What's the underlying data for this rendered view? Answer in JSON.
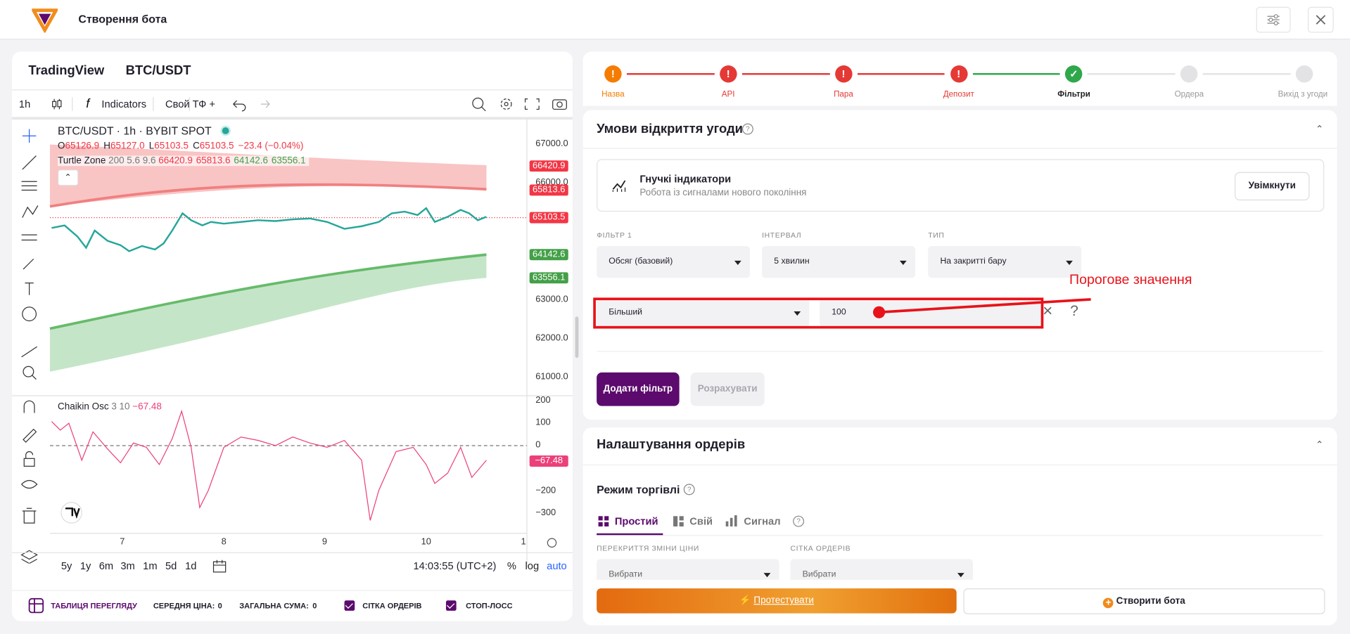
{
  "header": {
    "title": "Створення бота"
  },
  "chart": {
    "source": "TradingView",
    "symbol": "BTC/USDT",
    "toolbar": {
      "interval": "1h",
      "indicators": "Indicators",
      "custom_tf": "Свой ТФ +"
    },
    "legend": {
      "title": "BTC/USDT · 1h · BYBIT SPOT",
      "ohlc": [
        [
          "O",
          "65126.9"
        ],
        [
          "H",
          "65127.0"
        ],
        [
          "L",
          "65103.5"
        ],
        [
          "C",
          "65103.5"
        ]
      ],
      "change": "−23.4 (−0.04%)"
    },
    "indicator": {
      "name": "Turtle Zone",
      "params": "200 5.6 9.6",
      "values": [
        "66420.9",
        "65813.6",
        "64142.6",
        "63556.1"
      ]
    },
    "price_axis": [
      "67000.0",
      "66000.0",
      "63000.0",
      "62000.0",
      "61000.0"
    ],
    "price_badges": [
      "66420.9",
      "65813.6",
      "65103.5",
      "64142.6",
      "63556.1"
    ],
    "oscillator": {
      "name": "Chaikin Osc",
      "params": "3 10",
      "value": "−67.48",
      "axis": [
        "200",
        "100",
        "0",
        "−200",
        "−300"
      ]
    },
    "time_axis": [
      "7",
      "8",
      "9",
      "10",
      "1"
    ],
    "ranges": [
      "5y",
      "1y",
      "6m",
      "3m",
      "1m",
      "5d",
      "1d"
    ],
    "clock": "14:03:55 (UTC+2)",
    "scale_options": [
      "%",
      "log",
      "auto"
    ]
  },
  "footer": {
    "table": "ТАБЛИЦЯ ПЕРЕГЛЯДУ",
    "avg_label": "СЕРЕДНЯ ЦІНА:",
    "avg_value": "0",
    "sum_label": "ЗАГАЛЬНА СУМА:",
    "sum_value": "0",
    "grid": "СІТКА ОРДЕРІВ",
    "stop": "СТОП-ЛОСС"
  },
  "steps": [
    {
      "label": "Назва",
      "status": "warning"
    },
    {
      "label": "API",
      "status": "error"
    },
    {
      "label": "Пара",
      "status": "error"
    },
    {
      "label": "Депозит",
      "status": "error"
    },
    {
      "label": "Фільтри",
      "status": "done"
    },
    {
      "label": "Ордера",
      "status": "pending"
    },
    {
      "label": "Вихід з угоди",
      "status": "pending"
    }
  ],
  "conditions": {
    "title": "Умови відкриття угоди",
    "feature": {
      "title": "Гнучкі індикатори",
      "subtitle": "Робота із сигналами нового покоління",
      "button": "Увімкнути"
    },
    "filter_labels": [
      "ФІЛЬТР 1",
      "ІНТЕРВАЛ",
      "ТИП"
    ],
    "filter_values": [
      "Обсяг (базовий)",
      "5 хвилин",
      "На закритті бару"
    ],
    "comparison": "Більший",
    "threshold": "100",
    "annotation": "Порогове значення",
    "add_button": "Додати фільтр",
    "calc_button": "Розрахувати"
  },
  "orders": {
    "title": "Налаштування ордерів",
    "mode_title": "Режим торгівлі",
    "tabs": [
      "Простий",
      "Свій",
      "Сигнал"
    ],
    "field_labels": [
      "ПЕРЕКРИТТЯ ЗМІНИ ЦІНИ",
      "СІТКА ОРДЕРІВ"
    ],
    "field_values": [
      "Вибрати",
      "Вибрати"
    ]
  },
  "actions": {
    "test": "Протестувати",
    "create": "Створити бота"
  }
}
